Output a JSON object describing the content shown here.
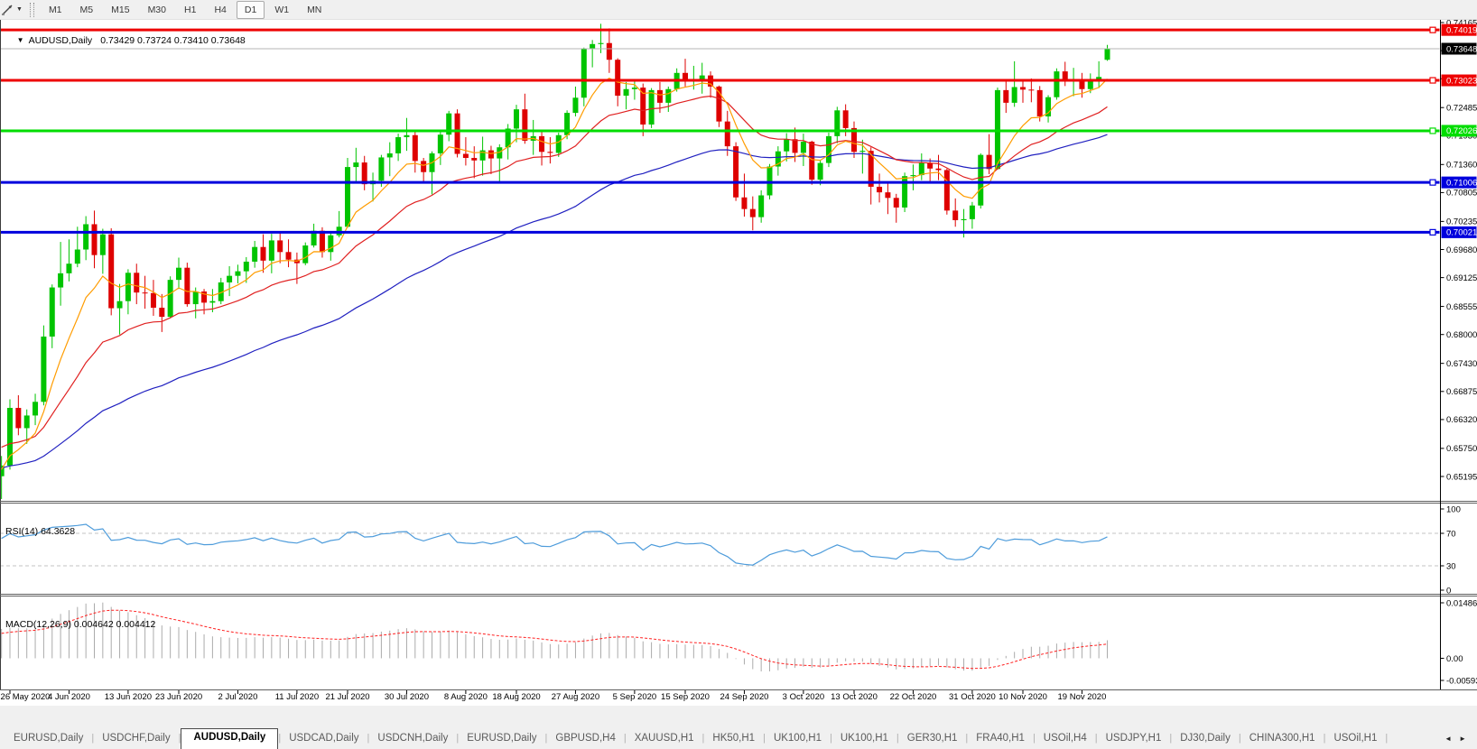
{
  "toolbar": {
    "tool_icon": "crosshair-tool-icon",
    "dropdown_glyph": "▼",
    "timeframes": [
      "M1",
      "M5",
      "M15",
      "M30",
      "H1",
      "H4",
      "D1",
      "W1",
      "MN"
    ],
    "selected_timeframe": "D1"
  },
  "window": {
    "title_marker": "▼",
    "symbol": "AUDUSD,Daily",
    "ohlc_text": "0.73429 0.73724 0.73410 0.73648"
  },
  "chart_data": {
    "type": "candlestick",
    "symbol": "AUDUSD",
    "timeframe": "Daily",
    "current_bar": {
      "open": 0.73429,
      "high": 0.73724,
      "low": 0.7341,
      "close": 0.73648
    },
    "bid": {
      "value": 0.73648,
      "label": "0.73648"
    },
    "colors": {
      "bull": "#00C400",
      "bear": "#DE0000",
      "ma_fast": "#FF9C00",
      "ma_medium": "#E02020",
      "ma_slow": "#2020C0",
      "bid_line": "#B4B4B4",
      "bid_label_bg": "#000000",
      "axis_text": "#000000",
      "panel_border": "#5f5f5f",
      "rsi_line": "#4E9CDB",
      "level_dash": "#C3C3C3",
      "macd_histogram": "#ABABAB",
      "macd_signal": "#FF2020"
    },
    "price_axis": {
      "labeled_ticks": [
        {
          "value": 0.74165,
          "label": "0.74165"
        },
        {
          "value": 0.72485,
          "label": "0.72485"
        },
        {
          "value": 0.7193,
          "label": "0.71930"
        },
        {
          "value": 0.7136,
          "label": "0.71360"
        },
        {
          "value": 0.70805,
          "label": "0.70805"
        },
        {
          "value": 0.70235,
          "label": "0.70235"
        },
        {
          "value": 0.6968,
          "label": "0.69680"
        },
        {
          "value": 0.69125,
          "label": "0.69125"
        },
        {
          "value": 0.68555,
          "label": "0.68555"
        },
        {
          "value": 0.68,
          "label": "0.68000"
        },
        {
          "value": 0.6743,
          "label": "0.67430"
        },
        {
          "value": 0.66875,
          "label": "0.66875"
        },
        {
          "value": 0.6632,
          "label": "0.66320"
        },
        {
          "value": 0.6575,
          "label": "0.65750"
        },
        {
          "value": 0.65195,
          "label": "0.65195"
        }
      ],
      "unlabeled_ticks": [
        0.7361,
        0.73055
      ]
    },
    "horizontal_lines": [
      {
        "value": 0.74019,
        "label": "0.74019",
        "color": "#EE0000"
      },
      {
        "value": 0.73023,
        "label": "0.73023",
        "color": "#EE0000"
      },
      {
        "value": 0.72026,
        "label": "0.72026",
        "color": "#00DD00"
      },
      {
        "value": 0.71006,
        "label": "0.71006",
        "color": "#0000DD"
      },
      {
        "value": 0.70021,
        "label": "0.70021",
        "color": "#0000DD"
      }
    ],
    "moving_averages": [
      {
        "name": "fast",
        "color": "#FF9C00"
      },
      {
        "name": "medium",
        "color": "#E02020"
      },
      {
        "name": "slow",
        "color": "#2020C0"
      }
    ],
    "date_axis": [
      {
        "bar": 1,
        "label": "26 May 2020"
      },
      {
        "bar": 8,
        "label": "4 Jun 2020"
      },
      {
        "bar": 15,
        "label": "13 Jun 2020"
      },
      {
        "bar": 21,
        "label": "23 Jun 2020"
      },
      {
        "bar": 28,
        "label": "2 Jul 2020"
      },
      {
        "bar": 35,
        "label": "11 Jul 2020"
      },
      {
        "bar": 41,
        "label": "21 Jul 2020"
      },
      {
        "bar": 48,
        "label": "30 Jul 2020"
      },
      {
        "bar": 55,
        "label": "8 Aug 2020"
      },
      {
        "bar": 61,
        "label": "18 Aug 2020"
      },
      {
        "bar": 68,
        "label": "27 Aug 2020"
      },
      {
        "bar": 75,
        "label": "5 Sep 2020"
      },
      {
        "bar": 81,
        "label": "15 Sep 2020"
      },
      {
        "bar": 88,
        "label": "24 Sep 2020"
      },
      {
        "bar": 95,
        "label": "3 Oct 2020"
      },
      {
        "bar": 101,
        "label": "13 Oct 2020"
      },
      {
        "bar": 108,
        "label": "22 Oct 2020"
      },
      {
        "bar": 115,
        "label": "31 Oct 2020"
      },
      {
        "bar": 121,
        "label": "10 Nov 2020"
      },
      {
        "bar": 128,
        "label": "19 Nov 2020"
      }
    ],
    "candles": [
      [
        0.652,
        0.656,
        0.6475,
        0.6541
      ],
      [
        0.6541,
        0.6672,
        0.6533,
        0.6655
      ],
      [
        0.6655,
        0.668,
        0.6601,
        0.6615
      ],
      [
        0.6615,
        0.6652,
        0.6584,
        0.664
      ],
      [
        0.664,
        0.6683,
        0.6621,
        0.6667
      ],
      [
        0.6667,
        0.6818,
        0.666,
        0.6796
      ],
      [
        0.6796,
        0.6899,
        0.6773,
        0.6893
      ],
      [
        0.6893,
        0.6983,
        0.6857,
        0.6921
      ],
      [
        0.6921,
        0.6988,
        0.6905,
        0.694
      ],
      [
        0.694,
        0.7013,
        0.6933,
        0.6968
      ],
      [
        0.6968,
        0.7034,
        0.6947,
        0.7018
      ],
      [
        0.7018,
        0.7045,
        0.6931,
        0.6957
      ],
      [
        0.6957,
        0.7009,
        0.692,
        0.6998
      ],
      [
        0.6998,
        0.701,
        0.6838,
        0.6852
      ],
      [
        0.6852,
        0.69,
        0.68,
        0.6866
      ],
      [
        0.6866,
        0.6929,
        0.684,
        0.6922
      ],
      [
        0.6922,
        0.694,
        0.686,
        0.6883
      ],
      [
        0.6883,
        0.6916,
        0.6851,
        0.6882
      ],
      [
        0.6882,
        0.6908,
        0.6837,
        0.6853
      ],
      [
        0.6853,
        0.688,
        0.6805,
        0.6835
      ],
      [
        0.6835,
        0.6915,
        0.6832,
        0.6908
      ],
      [
        0.6908,
        0.6952,
        0.689,
        0.6932
      ],
      [
        0.6932,
        0.6942,
        0.6855,
        0.686
      ],
      [
        0.686,
        0.6893,
        0.6832,
        0.6885
      ],
      [
        0.6885,
        0.689,
        0.684,
        0.6863
      ],
      [
        0.6863,
        0.689,
        0.6844,
        0.6866
      ],
      [
        0.6866,
        0.6912,
        0.686,
        0.6903
      ],
      [
        0.6903,
        0.6935,
        0.6876,
        0.6916
      ],
      [
        0.6916,
        0.6938,
        0.6901,
        0.6925
      ],
      [
        0.6925,
        0.6953,
        0.6902,
        0.6944
      ],
      [
        0.6944,
        0.6985,
        0.6932,
        0.6973
      ],
      [
        0.6973,
        0.6998,
        0.6922,
        0.6946
      ],
      [
        0.6946,
        0.6999,
        0.6921,
        0.6986
      ],
      [
        0.6986,
        0.7001,
        0.6941,
        0.6963
      ],
      [
        0.6963,
        0.6988,
        0.6933,
        0.6948
      ],
      [
        0.6948,
        0.6962,
        0.69,
        0.6941
      ],
      [
        0.6941,
        0.6982,
        0.6937,
        0.6976
      ],
      [
        0.6976,
        0.7019,
        0.6972,
        0.7005
      ],
      [
        0.7005,
        0.7012,
        0.6952,
        0.6963
      ],
      [
        0.6963,
        0.7002,
        0.6946,
        0.6996
      ],
      [
        0.6996,
        0.7044,
        0.6992,
        0.7013
      ],
      [
        0.7013,
        0.7149,
        0.7011,
        0.7131
      ],
      [
        0.7131,
        0.7169,
        0.71,
        0.714
      ],
      [
        0.714,
        0.7153,
        0.7085,
        0.7097
      ],
      [
        0.7097,
        0.712,
        0.7063,
        0.7104
      ],
      [
        0.7104,
        0.7155,
        0.7092,
        0.715
      ],
      [
        0.715,
        0.718,
        0.7113,
        0.7158
      ],
      [
        0.7158,
        0.7197,
        0.7143,
        0.719
      ],
      [
        0.719,
        0.7228,
        0.7163,
        0.7194
      ],
      [
        0.7194,
        0.7204,
        0.712,
        0.7143
      ],
      [
        0.7143,
        0.7149,
        0.7102,
        0.7121
      ],
      [
        0.7121,
        0.7162,
        0.7077,
        0.7158
      ],
      [
        0.7158,
        0.7204,
        0.7135,
        0.7195
      ],
      [
        0.7195,
        0.7242,
        0.7182,
        0.7237
      ],
      [
        0.7237,
        0.7245,
        0.715,
        0.7157
      ],
      [
        0.7157,
        0.719,
        0.7134,
        0.7149
      ],
      [
        0.7149,
        0.7172,
        0.7109,
        0.7144
      ],
      [
        0.7144,
        0.7191,
        0.7114,
        0.7164
      ],
      [
        0.7164,
        0.7173,
        0.7117,
        0.7148
      ],
      [
        0.7148,
        0.7176,
        0.7102,
        0.717
      ],
      [
        0.717,
        0.7216,
        0.7146,
        0.7207
      ],
      [
        0.7207,
        0.7254,
        0.718,
        0.7245
      ],
      [
        0.7245,
        0.7276,
        0.7177,
        0.7183
      ],
      [
        0.7183,
        0.7224,
        0.7155,
        0.7192
      ],
      [
        0.7192,
        0.72,
        0.7134,
        0.7161
      ],
      [
        0.7161,
        0.719,
        0.7138,
        0.7159
      ],
      [
        0.7159,
        0.7199,
        0.7151,
        0.7194
      ],
      [
        0.7194,
        0.7243,
        0.7186,
        0.7238
      ],
      [
        0.7238,
        0.729,
        0.7231,
        0.7268
      ],
      [
        0.7268,
        0.7367,
        0.7251,
        0.7365
      ],
      [
        0.7365,
        0.7382,
        0.7328,
        0.7374
      ],
      [
        0.7374,
        0.7414,
        0.7356,
        0.7376
      ],
      [
        0.7376,
        0.7405,
        0.7317,
        0.7343
      ],
      [
        0.7343,
        0.7346,
        0.7251,
        0.7272
      ],
      [
        0.7272,
        0.7299,
        0.7245,
        0.7285
      ],
      [
        0.7285,
        0.73,
        0.7264,
        0.7288
      ],
      [
        0.7288,
        0.7296,
        0.7192,
        0.7215
      ],
      [
        0.7215,
        0.7287,
        0.7208,
        0.7283
      ],
      [
        0.7283,
        0.7299,
        0.7238,
        0.7258
      ],
      [
        0.7258,
        0.729,
        0.724,
        0.7285
      ],
      [
        0.7285,
        0.7326,
        0.728,
        0.7317
      ],
      [
        0.7317,
        0.7345,
        0.729,
        0.7302
      ],
      [
        0.7302,
        0.7331,
        0.7284,
        0.7305
      ],
      [
        0.7305,
        0.7337,
        0.7276,
        0.7312
      ],
      [
        0.7312,
        0.732,
        0.7268,
        0.729
      ],
      [
        0.729,
        0.7292,
        0.721,
        0.7221
      ],
      [
        0.7221,
        0.7242,
        0.7153,
        0.7172
      ],
      [
        0.7172,
        0.718,
        0.7064,
        0.7071
      ],
      [
        0.7071,
        0.7118,
        0.7033,
        0.7048
      ],
      [
        0.7048,
        0.7073,
        0.7006,
        0.7032
      ],
      [
        0.7032,
        0.7085,
        0.7021,
        0.7075
      ],
      [
        0.7075,
        0.7137,
        0.7067,
        0.7132
      ],
      [
        0.7132,
        0.7172,
        0.7114,
        0.7162
      ],
      [
        0.7162,
        0.7198,
        0.7142,
        0.7186
      ],
      [
        0.7186,
        0.7209,
        0.7141,
        0.7159
      ],
      [
        0.7159,
        0.7197,
        0.7133,
        0.7181
      ],
      [
        0.7181,
        0.7183,
        0.7096,
        0.7106
      ],
      [
        0.7106,
        0.7144,
        0.7095,
        0.7139
      ],
      [
        0.7139,
        0.7199,
        0.7131,
        0.7192
      ],
      [
        0.7192,
        0.725,
        0.7178,
        0.7243
      ],
      [
        0.7243,
        0.7255,
        0.7192,
        0.7208
      ],
      [
        0.7208,
        0.7221,
        0.7149,
        0.7161
      ],
      [
        0.7161,
        0.7185,
        0.7118,
        0.7163
      ],
      [
        0.7163,
        0.717,
        0.7057,
        0.7092
      ],
      [
        0.7092,
        0.7118,
        0.7061,
        0.7081
      ],
      [
        0.7081,
        0.7099,
        0.7038,
        0.707
      ],
      [
        0.707,
        0.7078,
        0.7021,
        0.7051
      ],
      [
        0.7051,
        0.712,
        0.7042,
        0.7113
      ],
      [
        0.7113,
        0.7136,
        0.7085,
        0.7115
      ],
      [
        0.7115,
        0.7158,
        0.7105,
        0.7139
      ],
      [
        0.7139,
        0.7148,
        0.7103,
        0.7128
      ],
      [
        0.7128,
        0.7155,
        0.7105,
        0.7125
      ],
      [
        0.7125,
        0.7128,
        0.7037,
        0.7045
      ],
      [
        0.7045,
        0.7069,
        0.7013,
        0.7026
      ],
      [
        0.7026,
        0.7048,
        0.69917,
        0.7028
      ],
      [
        0.7028,
        0.7062,
        0.7009,
        0.7055
      ],
      [
        0.7055,
        0.7158,
        0.7049,
        0.7155
      ],
      [
        0.7155,
        0.7196,
        0.7117,
        0.7127
      ],
      [
        0.7127,
        0.7288,
        0.7126,
        0.7283
      ],
      [
        0.7283,
        0.73,
        0.7238,
        0.7258
      ],
      [
        0.7258,
        0.734,
        0.725,
        0.7289
      ],
      [
        0.7289,
        0.7302,
        0.7258,
        0.7284
      ],
      [
        0.7284,
        0.7306,
        0.7259,
        0.7283
      ],
      [
        0.7283,
        0.7291,
        0.7221,
        0.7231
      ],
      [
        0.7231,
        0.7273,
        0.7219,
        0.7269
      ],
      [
        0.7269,
        0.7326,
        0.7264,
        0.732
      ],
      [
        0.732,
        0.7339,
        0.7291,
        0.73
      ],
      [
        0.73,
        0.7327,
        0.7271,
        0.7302
      ],
      [
        0.7302,
        0.7317,
        0.7268,
        0.7285
      ],
      [
        0.7285,
        0.7316,
        0.7277,
        0.7303
      ],
      [
        0.7303,
        0.734,
        0.7287,
        0.7309
      ],
      [
        0.73429,
        0.73724,
        0.7341,
        0.73648
      ]
    ],
    "rsi": {
      "label": "RSI(14) 64.3628",
      "period": 14,
      "value": 64.3628,
      "levels": [
        {
          "value": 100,
          "label": "100",
          "dashed": false
        },
        {
          "value": 70,
          "label": "70",
          "dashed": true
        },
        {
          "value": 30,
          "label": "30",
          "dashed": true
        },
        {
          "value": 0,
          "label": "0",
          "dashed": false
        }
      ]
    },
    "macd": {
      "label": "MACD(12,26,9) 0.004642 0.004412",
      "macd_value": 0.004642,
      "signal_value": 0.004412,
      "axis_ticks": [
        {
          "value": 0.014861,
          "label": "0.014861"
        },
        {
          "value": 0,
          "label": "0.00"
        },
        {
          "value": -0.00593,
          "label": "-0.00593"
        }
      ]
    }
  },
  "tabs": {
    "items": [
      "EURUSD,Daily",
      "USDCHF,Daily",
      "AUDUSD,Daily",
      "USDCAD,Daily",
      "USDCNH,Daily",
      "EURUSD,Daily",
      "GBPUSD,H4",
      "XAUUSD,H1",
      "HK50,H1",
      "UK100,H1",
      "UK100,H1",
      "GER30,H1",
      "FRA40,H1",
      "USOil,H4",
      "USDJPY,H1",
      "DJ30,Daily",
      "CHINA300,H1",
      "USOil,H1"
    ],
    "active_index": 2,
    "scroll_left_icon": "◄",
    "scroll_right_icon": "►"
  }
}
